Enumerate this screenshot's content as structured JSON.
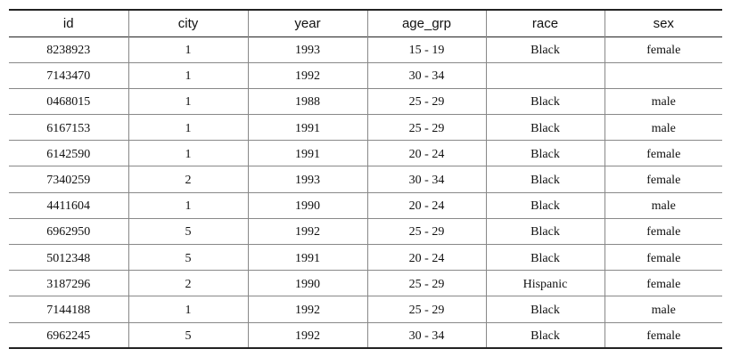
{
  "table": {
    "columns": [
      "id",
      "city",
      "year",
      "age_grp",
      "race",
      "sex"
    ],
    "rows": [
      [
        "8238923",
        "1",
        "1993",
        "15 - 19",
        "Black",
        "female"
      ],
      [
        "7143470",
        "1",
        "1992",
        "30 - 34",
        "",
        ""
      ],
      [
        "0468015",
        "1",
        "1988",
        "25 - 29",
        "Black",
        "male"
      ],
      [
        "6167153",
        "1",
        "1991",
        "25 - 29",
        "Black",
        "male"
      ],
      [
        "6142590",
        "1",
        "1991",
        "20 - 24",
        "Black",
        "female"
      ],
      [
        "7340259",
        "2",
        "1993",
        "30 - 34",
        "Black",
        "female"
      ],
      [
        "4411604",
        "1",
        "1990",
        "20 - 24",
        "Black",
        "male"
      ],
      [
        "6962950",
        "5",
        "1992",
        "25 - 29",
        "Black",
        "female"
      ],
      [
        "5012348",
        "5",
        "1991",
        "20 - 24",
        "Black",
        "female"
      ],
      [
        "3187296",
        "2",
        "1990",
        "25 - 29",
        "Hispanic",
        "female"
      ],
      [
        "7144188",
        "1",
        "1992",
        "25 - 29",
        "Black",
        "male"
      ],
      [
        "6962245",
        "5",
        "1992",
        "30 - 34",
        "Black",
        "female"
      ]
    ]
  }
}
